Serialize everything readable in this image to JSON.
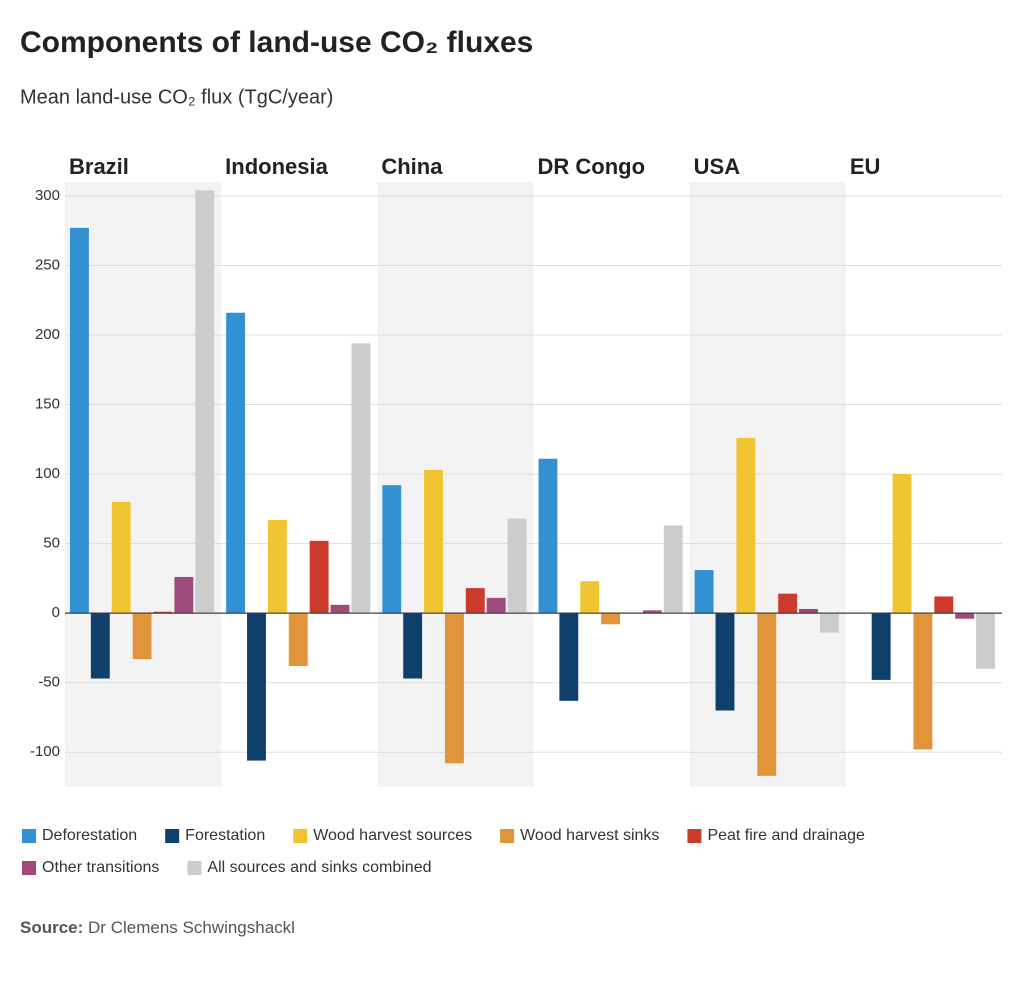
{
  "chart_data": {
    "type": "bar",
    "title": "Components of land-use CO₂ fluxes",
    "subtitle": "Mean land-use CO₂ flux (TgC/year)",
    "categories": [
      "Brazil",
      "Indonesia",
      "China",
      "DR Congo",
      "USA",
      "EU"
    ],
    "series": [
      {
        "name": "Deforestation",
        "color": "#3391d3",
        "values": [
          277,
          216,
          92,
          111,
          31,
          0
        ]
      },
      {
        "name": "Forestation",
        "color": "#0f3f6b",
        "values": [
          -47,
          -106,
          -47,
          -63,
          -70,
          -48
        ]
      },
      {
        "name": "Wood harvest sources",
        "color": "#f0c531",
        "values": [
          80,
          67,
          103,
          23,
          126,
          100
        ]
      },
      {
        "name": "Wood harvest sinks",
        "color": "#e0953a",
        "values": [
          -33,
          -38,
          -108,
          -8,
          -117,
          -98
        ]
      },
      {
        "name": "Peat fire and drainage",
        "color": "#cc3a2b",
        "values": [
          1,
          52,
          18,
          0,
          14,
          12
        ]
      },
      {
        "name": "Other transitions",
        "color": "#a04a7b",
        "values": [
          26,
          6,
          11,
          2,
          3,
          -4
        ]
      },
      {
        "name": "All sources and sinks combined",
        "color": "#cccccc",
        "values": [
          304,
          194,
          68,
          63,
          -14,
          -40
        ]
      }
    ],
    "ylim": [
      -125,
      310
    ],
    "yticks": [
      -100,
      -50,
      0,
      50,
      100,
      150,
      200,
      250,
      300
    ],
    "grid": true,
    "source_label": "Source:",
    "source": "Dr Clemens Schwingshackl"
  }
}
